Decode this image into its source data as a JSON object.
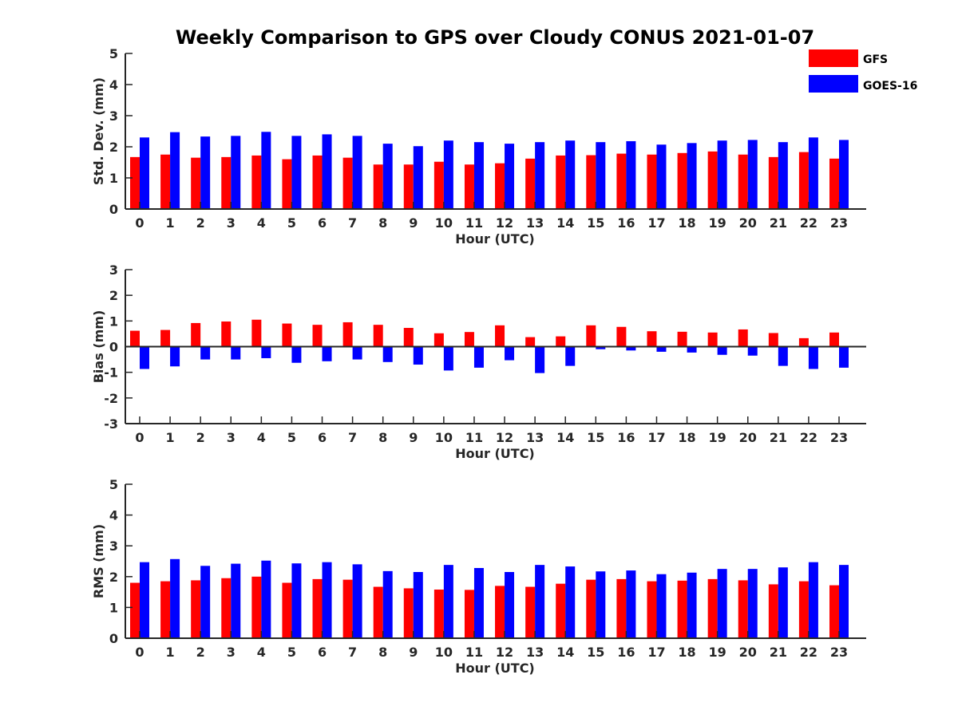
{
  "chart_data": {
    "type": "bar",
    "title": "Weekly Comparison to GPS over Cloudy CONUS 2021-01-07",
    "legend": {
      "placement": "top-right",
      "entries": [
        {
          "name": "GFS",
          "color": "#ff0000"
        },
        {
          "name": "GOES-16",
          "color": "#0000ff"
        }
      ]
    },
    "categories": [
      "0",
      "1",
      "2",
      "3",
      "4",
      "5",
      "6",
      "7",
      "8",
      "9",
      "10",
      "11",
      "12",
      "13",
      "14",
      "15",
      "16",
      "17",
      "18",
      "19",
      "20",
      "21",
      "22",
      "23"
    ],
    "panels": [
      {
        "id": "stddev",
        "ylabel": "Std. Dev. (mm)",
        "xlabel": "Hour (UTC)",
        "ylim": [
          0,
          5
        ],
        "yticks": [
          "0",
          "1",
          "2",
          "3",
          "4",
          "5"
        ],
        "grid": false,
        "series": [
          {
            "name": "GFS",
            "color": "#ff0000",
            "values": [
              1.67,
              1.75,
              1.65,
              1.67,
              1.72,
              1.6,
              1.72,
              1.65,
              1.43,
              1.43,
              1.52,
              1.43,
              1.47,
              1.62,
              1.72,
              1.73,
              1.78,
              1.75,
              1.8,
              1.85,
              1.75,
              1.67,
              1.83,
              1.62
            ]
          },
          {
            "name": "GOES-16",
            "color": "#0000ff",
            "values": [
              2.3,
              2.47,
              2.33,
              2.35,
              2.48,
              2.35,
              2.4,
              2.35,
              2.1,
              2.02,
              2.2,
              2.15,
              2.1,
              2.15,
              2.2,
              2.15,
              2.18,
              2.07,
              2.12,
              2.2,
              2.22,
              2.15,
              2.3,
              2.22
            ]
          }
        ]
      },
      {
        "id": "bias",
        "ylabel": "Bias (mm)",
        "xlabel": "Hour (UTC)",
        "ylim": [
          -3,
          3
        ],
        "yticks": [
          "-3",
          "-2",
          "-1",
          "0",
          "1",
          "2",
          "3"
        ],
        "grid": false,
        "series": [
          {
            "name": "GFS",
            "color": "#ff0000",
            "values": [
              0.62,
              0.65,
              0.92,
              0.98,
              1.05,
              0.9,
              0.85,
              0.95,
              0.85,
              0.73,
              0.52,
              0.57,
              0.83,
              0.37,
              0.4,
              0.83,
              0.77,
              0.6,
              0.58,
              0.55,
              0.67,
              0.53,
              0.33,
              0.55
            ]
          },
          {
            "name": "GOES-16",
            "color": "#0000ff",
            "values": [
              -0.87,
              -0.77,
              -0.5,
              -0.5,
              -0.45,
              -0.63,
              -0.57,
              -0.5,
              -0.6,
              -0.7,
              -0.93,
              -0.82,
              -0.53,
              -1.03,
              -0.75,
              -0.1,
              -0.15,
              -0.2,
              -0.23,
              -0.32,
              -0.35,
              -0.75,
              -0.87,
              -0.82
            ]
          }
        ]
      },
      {
        "id": "rms",
        "ylabel": "RMS (mm)",
        "xlabel": "Hour (UTC)",
        "ylim": [
          0,
          5
        ],
        "yticks": [
          "0",
          "1",
          "2",
          "3",
          "4",
          "5"
        ],
        "grid": false,
        "series": [
          {
            "name": "GFS",
            "color": "#ff0000",
            "values": [
              1.8,
              1.85,
              1.88,
              1.95,
              2.0,
              1.8,
              1.92,
              1.9,
              1.67,
              1.62,
              1.58,
              1.57,
              1.7,
              1.67,
              1.77,
              1.9,
              1.92,
              1.85,
              1.87,
              1.92,
              1.88,
              1.75,
              1.85,
              1.72
            ]
          },
          {
            "name": "GOES-16",
            "color": "#0000ff",
            "values": [
              2.47,
              2.57,
              2.35,
              2.42,
              2.52,
              2.43,
              2.47,
              2.4,
              2.18,
              2.15,
              2.38,
              2.28,
              2.15,
              2.38,
              2.33,
              2.17,
              2.2,
              2.08,
              2.13,
              2.25,
              2.25,
              2.3,
              2.47,
              2.38
            ]
          }
        ]
      }
    ]
  }
}
